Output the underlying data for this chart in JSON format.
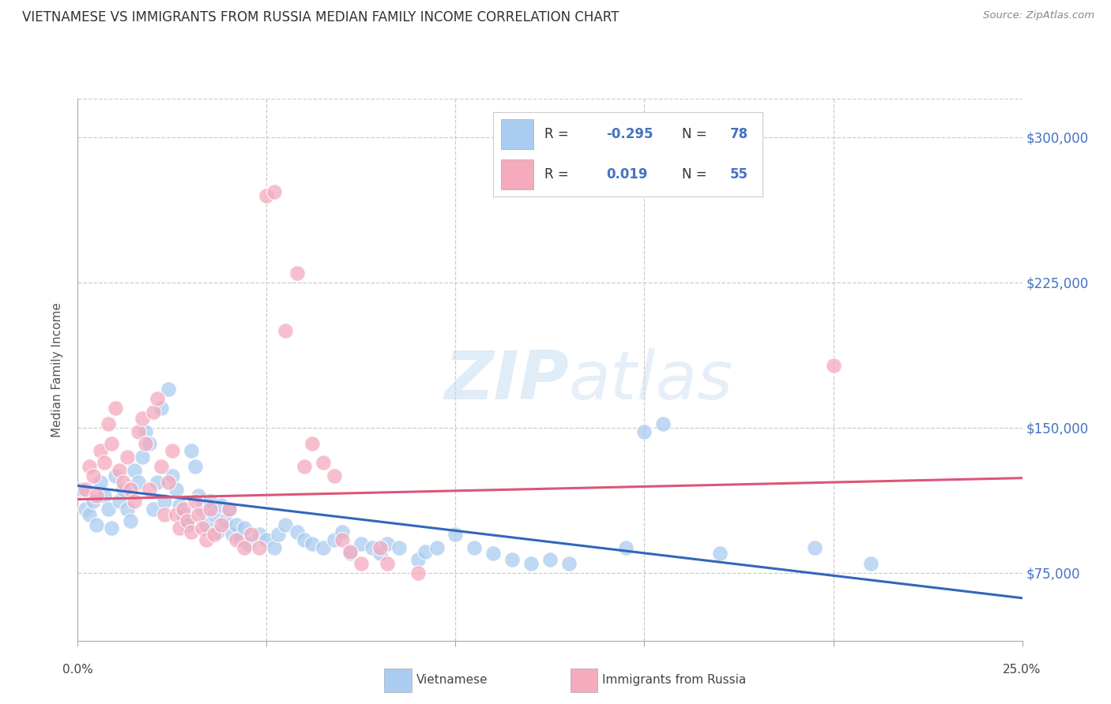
{
  "title": "VIETNAMESE VS IMMIGRANTS FROM RUSSIA MEDIAN FAMILY INCOME CORRELATION CHART",
  "source": "Source: ZipAtlas.com",
  "ylabel": "Median Family Income",
  "y_ticks": [
    75000,
    150000,
    225000,
    300000
  ],
  "y_tick_labels": [
    "$75,000",
    "$150,000",
    "$225,000",
    "$300,000"
  ],
  "xlim": [
    0.0,
    0.25
  ],
  "ylim": [
    40000,
    320000
  ],
  "watermark_zip": "ZIP",
  "watermark_atlas": "atlas",
  "color_blue": "#aaccf0",
  "color_pink": "#f5aabe",
  "line_blue": "#3366bb",
  "line_pink": "#dd5577",
  "background": "#ffffff",
  "blue_scatter": [
    [
      0.001,
      118000
    ],
    [
      0.002,
      108000
    ],
    [
      0.003,
      105000
    ],
    [
      0.004,
      112000
    ],
    [
      0.005,
      100000
    ],
    [
      0.006,
      122000
    ],
    [
      0.007,
      115000
    ],
    [
      0.008,
      108000
    ],
    [
      0.009,
      98000
    ],
    [
      0.01,
      125000
    ],
    [
      0.011,
      112000
    ],
    [
      0.012,
      118000
    ],
    [
      0.013,
      108000
    ],
    [
      0.014,
      102000
    ],
    [
      0.015,
      128000
    ],
    [
      0.016,
      122000
    ],
    [
      0.017,
      135000
    ],
    [
      0.018,
      148000
    ],
    [
      0.019,
      142000
    ],
    [
      0.02,
      108000
    ],
    [
      0.021,
      122000
    ],
    [
      0.022,
      160000
    ],
    [
      0.023,
      112000
    ],
    [
      0.024,
      170000
    ],
    [
      0.025,
      125000
    ],
    [
      0.026,
      118000
    ],
    [
      0.027,
      110000
    ],
    [
      0.028,
      105000
    ],
    [
      0.029,
      100000
    ],
    [
      0.03,
      138000
    ],
    [
      0.031,
      130000
    ],
    [
      0.032,
      115000
    ],
    [
      0.033,
      108000
    ],
    [
      0.034,
      100000
    ],
    [
      0.035,
      112000
    ],
    [
      0.036,
      105000
    ],
    [
      0.037,
      96000
    ],
    [
      0.038,
      110000
    ],
    [
      0.039,
      102000
    ],
    [
      0.04,
      108000
    ],
    [
      0.041,
      95000
    ],
    [
      0.042,
      100000
    ],
    [
      0.043,
      93000
    ],
    [
      0.044,
      98000
    ],
    [
      0.045,
      90000
    ],
    [
      0.048,
      95000
    ],
    [
      0.05,
      92000
    ],
    [
      0.052,
      88000
    ],
    [
      0.053,
      95000
    ],
    [
      0.055,
      100000
    ],
    [
      0.058,
      96000
    ],
    [
      0.06,
      92000
    ],
    [
      0.062,
      90000
    ],
    [
      0.065,
      88000
    ],
    [
      0.068,
      92000
    ],
    [
      0.07,
      96000
    ],
    [
      0.072,
      85000
    ],
    [
      0.075,
      90000
    ],
    [
      0.078,
      88000
    ],
    [
      0.08,
      85000
    ],
    [
      0.082,
      90000
    ],
    [
      0.085,
      88000
    ],
    [
      0.09,
      82000
    ],
    [
      0.092,
      86000
    ],
    [
      0.095,
      88000
    ],
    [
      0.1,
      95000
    ],
    [
      0.105,
      88000
    ],
    [
      0.11,
      85000
    ],
    [
      0.115,
      82000
    ],
    [
      0.12,
      80000
    ],
    [
      0.125,
      82000
    ],
    [
      0.13,
      80000
    ],
    [
      0.145,
      88000
    ],
    [
      0.15,
      148000
    ],
    [
      0.155,
      152000
    ],
    [
      0.17,
      85000
    ],
    [
      0.195,
      88000
    ],
    [
      0.21,
      80000
    ]
  ],
  "pink_scatter": [
    [
      0.002,
      118000
    ],
    [
      0.003,
      130000
    ],
    [
      0.004,
      125000
    ],
    [
      0.005,
      115000
    ],
    [
      0.006,
      138000
    ],
    [
      0.007,
      132000
    ],
    [
      0.008,
      152000
    ],
    [
      0.009,
      142000
    ],
    [
      0.01,
      160000
    ],
    [
      0.011,
      128000
    ],
    [
      0.012,
      122000
    ],
    [
      0.013,
      135000
    ],
    [
      0.014,
      118000
    ],
    [
      0.015,
      112000
    ],
    [
      0.016,
      148000
    ],
    [
      0.017,
      155000
    ],
    [
      0.018,
      142000
    ],
    [
      0.019,
      118000
    ],
    [
      0.02,
      158000
    ],
    [
      0.021,
      165000
    ],
    [
      0.022,
      130000
    ],
    [
      0.023,
      105000
    ],
    [
      0.024,
      122000
    ],
    [
      0.025,
      138000
    ],
    [
      0.026,
      105000
    ],
    [
      0.027,
      98000
    ],
    [
      0.028,
      108000
    ],
    [
      0.029,
      102000
    ],
    [
      0.03,
      96000
    ],
    [
      0.031,
      112000
    ],
    [
      0.032,
      105000
    ],
    [
      0.033,
      98000
    ],
    [
      0.034,
      92000
    ],
    [
      0.035,
      108000
    ],
    [
      0.036,
      95000
    ],
    [
      0.038,
      100000
    ],
    [
      0.04,
      108000
    ],
    [
      0.042,
      92000
    ],
    [
      0.044,
      88000
    ],
    [
      0.046,
      95000
    ],
    [
      0.048,
      88000
    ],
    [
      0.05,
      270000
    ],
    [
      0.052,
      272000
    ],
    [
      0.055,
      200000
    ],
    [
      0.058,
      230000
    ],
    [
      0.06,
      130000
    ],
    [
      0.062,
      142000
    ],
    [
      0.065,
      132000
    ],
    [
      0.068,
      125000
    ],
    [
      0.07,
      92000
    ],
    [
      0.072,
      86000
    ],
    [
      0.075,
      80000
    ],
    [
      0.08,
      88000
    ],
    [
      0.082,
      80000
    ],
    [
      0.09,
      75000
    ],
    [
      0.2,
      182000
    ]
  ],
  "blue_line": [
    [
      0.0,
      120000
    ],
    [
      0.25,
      62000
    ]
  ],
  "pink_line": [
    [
      0.0,
      113000
    ],
    [
      0.25,
      124000
    ]
  ]
}
